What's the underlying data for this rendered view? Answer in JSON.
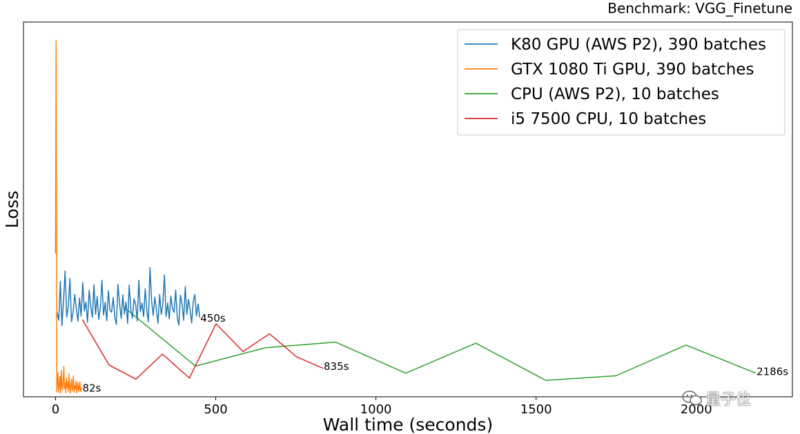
{
  "chart_data": {
    "type": "line",
    "title": "Benchmark: VGG_Finetune",
    "xlabel": "Wall time (seconds)",
    "ylabel": "Loss",
    "xlim": [
      -100,
      2300
    ],
    "ylim": [
      0,
      100
    ],
    "xticks": [
      0,
      500,
      1000,
      1500,
      2000
    ],
    "xtick_labels": [
      "0",
      "500",
      "1000",
      "1500",
      "2000"
    ],
    "yticks_shown": false,
    "grid": false,
    "legend_position": "top-right",
    "series": [
      {
        "name": "K80 GPU (AWS P2), 390 batches",
        "color": "#1f77b4",
        "x": [
          5,
          10,
          15,
          20,
          25,
          30,
          35,
          40,
          45,
          50,
          55,
          60,
          65,
          70,
          75,
          80,
          85,
          90,
          95,
          100,
          105,
          110,
          115,
          120,
          125,
          130,
          135,
          140,
          145,
          150,
          155,
          160,
          165,
          170,
          175,
          180,
          185,
          190,
          195,
          200,
          205,
          210,
          215,
          220,
          225,
          230,
          235,
          240,
          245,
          250,
          255,
          260,
          265,
          270,
          275,
          280,
          285,
          290,
          295,
          300,
          305,
          310,
          315,
          320,
          325,
          330,
          335,
          340,
          345,
          350,
          355,
          360,
          365,
          370,
          375,
          380,
          385,
          390,
          395,
          400,
          405,
          410,
          415,
          420,
          425,
          430,
          435,
          440,
          445,
          450
        ],
        "y": [
          22.5,
          20.4,
          30.8,
          19.0,
          25.4,
          33.6,
          21.3,
          24.2,
          31.6,
          20.0,
          22.6,
          27.3,
          23.5,
          20.2,
          26.4,
          21.5,
          30.5,
          22.9,
          25.3,
          19.9,
          28.4,
          24.0,
          21.2,
          29.9,
          22.0,
          26.8,
          20.6,
          23.9,
          31.1,
          21.8,
          25.2,
          20.3,
          28.3,
          23.1,
          22.6,
          26.5,
          21.3,
          19.3,
          30.0,
          24.7,
          20.9,
          27.2,
          22.1,
          25.3,
          19.6,
          29.8,
          23.4,
          21.0,
          26.1,
          24.8,
          20.2,
          31.1,
          22.7,
          25.0,
          21.4,
          28.8,
          23.0,
          20.0,
          34.5,
          25.4,
          21.7,
          26.6,
          23.3,
          19.6,
          27.3,
          22.0,
          24.8,
          32.5,
          21.4,
          25.0,
          20.8,
          26.9,
          23.6,
          22.5,
          28.5,
          21.2,
          19.1,
          27.1,
          24.7,
          20.4,
          29.4,
          22.0,
          26.0,
          23.2,
          19.7,
          25.5,
          27.3,
          21.6,
          24.8,
          21.2
        ],
        "end_label": "450s",
        "end_x": 450,
        "end_y": 21.0
      },
      {
        "name": "GTX 1080 Ti GPU, 390 batches",
        "color": "#ff7f0e",
        "x": [
          0,
          2,
          4,
          6,
          8,
          10,
          12,
          14,
          16,
          18,
          20,
          22,
          24,
          26,
          28,
          30,
          32,
          34,
          36,
          38,
          40,
          42,
          44,
          46,
          48,
          50,
          52,
          54,
          56,
          58,
          60,
          62,
          64,
          66,
          68,
          70,
          72,
          74,
          76,
          78,
          80,
          82
        ],
        "y": [
          38.3,
          95.0,
          1.3,
          3.5,
          6.4,
          1.2,
          2.9,
          5.4,
          1.0,
          7.0,
          3.1,
          1.8,
          4.5,
          8.1,
          2.2,
          3.6,
          1.1,
          5.1,
          2.5,
          3.9,
          1.4,
          6.1,
          2.8,
          1.0,
          3.4,
          4.7,
          1.6,
          2.7,
          5.6,
          1.2,
          3.0,
          2.1,
          4.2,
          1.0,
          2.6,
          3.8,
          1.5,
          2.3,
          4.0,
          1.3,
          2.4,
          1.8
        ],
        "end_label": "82s",
        "end_x": 82,
        "end_y": 2.3
      },
      {
        "name": "CPU (AWS P2), 10 batches",
        "color": "#2ca02c",
        "x": [
          218,
          437,
          656,
          874,
          1093,
          1312,
          1530,
          1749,
          1968,
          2186
        ],
        "y": [
          23.6,
          8.2,
          13.1,
          14.6,
          6.3,
          14.3,
          4.4,
          5.6,
          13.8,
          6.3
        ],
        "end_label": "2186s",
        "end_x": 2186,
        "end_y": 6.7
      },
      {
        "name": "i5 7500 CPU, 10 batches",
        "color": "#d62728",
        "x": [
          84,
          167,
          251,
          334,
          418,
          501,
          585,
          668,
          752,
          835
        ],
        "y": [
          20.6,
          8.5,
          4.7,
          11.4,
          5.0,
          19.5,
          12.1,
          16.8,
          10.7,
          7.6
        ],
        "end_label": "835s",
        "end_x": 835,
        "end_y": 8.1
      }
    ]
  },
  "watermark": {
    "text": "量子位",
    "icon": "wechat-icon"
  }
}
